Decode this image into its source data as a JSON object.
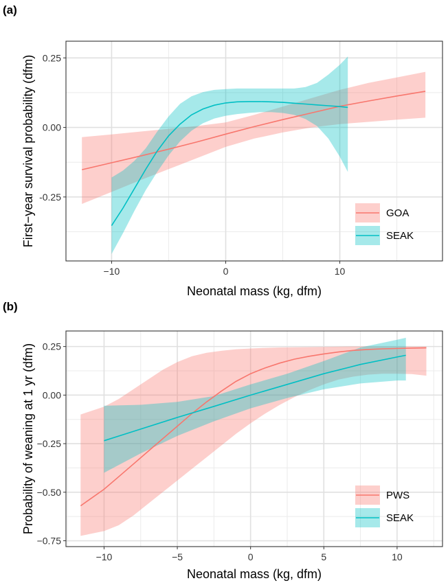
{
  "chart_data": [
    {
      "type": "line",
      "panel_label": "(a)",
      "xlabel": "Neonatal mass (kg, dfm)",
      "ylabel": "First−year survival probability (dfm)",
      "xlim": [
        -14,
        19
      ],
      "ylim": [
        -0.48,
        0.31
      ],
      "x_ticks": [
        -10,
        0,
        10
      ],
      "x_tick_labels": [
        "−10",
        "0",
        "10"
      ],
      "y_ticks": [
        -0.25,
        0.0,
        0.25
      ],
      "y_tick_labels": [
        "-0.25",
        "0.00",
        "0.25"
      ],
      "grid": true,
      "legend_position": "bottom-right",
      "series": [
        {
          "name": "GOA",
          "color": "#F8766D",
          "fill": "#FFC9C5",
          "x": [
            -12.6,
            -10,
            -7.5,
            -5,
            -2.5,
            0,
            2.5,
            5,
            7.5,
            10,
            12.5,
            15,
            17.5
          ],
          "y": [
            -0.152,
            -0.127,
            -0.103,
            -0.078,
            -0.052,
            -0.024,
            0.003,
            0.028,
            0.052,
            0.076,
            0.095,
            0.113,
            0.13
          ],
          "lower": [
            -0.275,
            -0.232,
            -0.19,
            -0.15,
            -0.11,
            -0.07,
            -0.04,
            -0.018,
            0.0,
            0.012,
            0.02,
            0.028,
            0.035
          ],
          "upper": [
            -0.035,
            -0.025,
            -0.015,
            -0.005,
            0.005,
            0.018,
            0.045,
            0.075,
            0.105,
            0.135,
            0.16,
            0.18,
            0.2
          ]
        },
        {
          "name": "SEAK",
          "color": "#00BFC4",
          "fill": "#A5E6E8",
          "x": [
            -10,
            -9,
            -8,
            -7,
            -6,
            -5,
            -4,
            -3,
            -2,
            -1,
            0,
            1,
            2,
            3,
            4,
            5,
            6,
            7,
            8,
            9,
            10,
            10.7
          ],
          "y": [
            -0.353,
            -0.29,
            -0.22,
            -0.15,
            -0.085,
            -0.03,
            0.012,
            0.045,
            0.066,
            0.08,
            0.088,
            0.092,
            0.093,
            0.093,
            0.092,
            0.09,
            0.087,
            0.084,
            0.081,
            0.078,
            0.075,
            0.072
          ],
          "lower": [
            -0.455,
            -0.38,
            -0.3,
            -0.225,
            -0.16,
            -0.1,
            -0.05,
            -0.012,
            0.015,
            0.032,
            0.042,
            0.048,
            0.052,
            0.055,
            0.055,
            0.052,
            0.045,
            0.03,
            0.005,
            -0.04,
            -0.105,
            -0.16
          ],
          "upper": [
            -0.18,
            -0.155,
            -0.12,
            -0.075,
            -0.015,
            0.04,
            0.085,
            0.112,
            0.127,
            0.135,
            0.138,
            0.14,
            0.14,
            0.14,
            0.14,
            0.14,
            0.14,
            0.145,
            0.16,
            0.19,
            0.225,
            0.255
          ]
        }
      ]
    },
    {
      "type": "line",
      "panel_label": "(b)",
      "xlabel": "Neonatal mass (kg, dfm)",
      "ylabel": "Probability of weaning at 1 yr (dfm)",
      "xlim": [
        -12.6,
        13.1
      ],
      "ylim": [
        -0.78,
        0.33
      ],
      "x_ticks": [
        -10,
        -5,
        0,
        5,
        10
      ],
      "x_tick_labels": [
        "−10",
        "−5",
        "0",
        "5",
        "10"
      ],
      "y_ticks": [
        -0.75,
        -0.5,
        -0.25,
        0.0,
        0.25
      ],
      "y_tick_labels": [
        "−0.75",
        "−0.50",
        "−0.25",
        "0.00",
        "0.25"
      ],
      "grid": true,
      "legend_position": "bottom-right",
      "series": [
        {
          "name": "PWS",
          "color": "#F8766D",
          "fill": "#FFC9C5",
          "x": [
            -11.6,
            -10,
            -9,
            -8,
            -7,
            -6,
            -5,
            -4,
            -3,
            -2,
            -1,
            0,
            1,
            2,
            3,
            4,
            5,
            6,
            7,
            8,
            9,
            10,
            11,
            12
          ],
          "y": [
            -0.57,
            -0.485,
            -0.42,
            -0.355,
            -0.29,
            -0.225,
            -0.16,
            -0.095,
            -0.035,
            0.02,
            0.07,
            0.11,
            0.14,
            0.165,
            0.185,
            0.2,
            0.212,
            0.222,
            0.23,
            0.235,
            0.238,
            0.24,
            0.242,
            0.243
          ],
          "lower": [
            -0.725,
            -0.7,
            -0.67,
            -0.62,
            -0.56,
            -0.5,
            -0.44,
            -0.38,
            -0.32,
            -0.26,
            -0.2,
            -0.145,
            -0.095,
            -0.05,
            -0.01,
            0.025,
            0.055,
            0.08,
            0.095,
            0.105,
            0.11,
            0.11,
            0.108,
            0.1
          ],
          "upper": [
            -0.1,
            -0.06,
            -0.02,
            0.03,
            0.08,
            0.13,
            0.17,
            0.2,
            0.218,
            0.228,
            0.236,
            0.24,
            0.243,
            0.245,
            0.246,
            0.247,
            0.248,
            0.249,
            0.25,
            0.25,
            0.25,
            0.25,
            0.25,
            0.25
          ]
        },
        {
          "name": "SEAK",
          "color": "#00BFC4",
          "fill": "#A5E6E8",
          "x": [
            -10,
            -7.5,
            -5,
            -2.5,
            0,
            2.5,
            5,
            7.5,
            10,
            10.6
          ],
          "y": [
            -0.235,
            -0.175,
            -0.115,
            -0.058,
            0.0,
            0.055,
            0.11,
            0.158,
            0.196,
            0.205
          ],
          "lower": [
            -0.4,
            -0.3,
            -0.21,
            -0.135,
            -0.068,
            -0.015,
            0.03,
            0.06,
            0.075,
            0.075
          ],
          "upper": [
            -0.055,
            -0.05,
            -0.035,
            -0.005,
            0.055,
            0.11,
            0.175,
            0.245,
            0.285,
            0.295
          ]
        }
      ]
    }
  ]
}
